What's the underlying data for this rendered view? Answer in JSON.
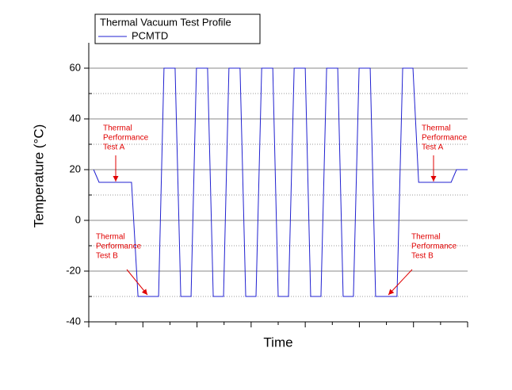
{
  "chart_data": {
    "type": "line",
    "legend_title": "Thermal Vacuum Test Profile",
    "x_label": "Time",
    "y_label": "Temperature (°C)",
    "xlim": [
      0,
      14
    ],
    "xticks": [
      0,
      2,
      4,
      6,
      8,
      10,
      12,
      14
    ],
    "x_minor_ticks": [
      1,
      3,
      5,
      7,
      9,
      11,
      13
    ],
    "ylim": [
      -40,
      70
    ],
    "yticks": [
      -40,
      -20,
      0,
      20,
      40,
      60
    ],
    "y_minor_grid": [
      -30,
      -10,
      10,
      30,
      50
    ],
    "grid": true,
    "series": [
      {
        "name": "PCMTD",
        "color": "#2020d0",
        "x": [
          0.18,
          0.38,
          1.58,
          1.82,
          2.58,
          2.78,
          3.19,
          3.4,
          3.78,
          3.98,
          4.39,
          4.6,
          4.98,
          5.18,
          5.59,
          5.8,
          6.18,
          6.39,
          6.8,
          7.0,
          7.38,
          7.59,
          8.0,
          8.2,
          8.58,
          8.79,
          9.2,
          9.4,
          9.78,
          9.99,
          10.4,
          10.6,
          11.39,
          11.6,
          11.98,
          12.19,
          13.39,
          13.59,
          14.0
        ],
        "values": [
          20,
          15,
          15,
          -30,
          -30,
          60,
          60,
          -30,
          -30,
          60,
          60,
          -30,
          -30,
          60,
          60,
          -30,
          -30,
          60,
          60,
          -30,
          -30,
          60,
          60,
          -30,
          -30,
          60,
          60,
          -30,
          -30,
          60,
          60,
          -30,
          -30,
          60,
          60,
          15,
          15,
          20,
          20
        ]
      }
    ],
    "annotations": [
      {
        "lines": [
          "Thermal",
          "Performance",
          "Test A"
        ]
      },
      {
        "lines": [
          "Thermal",
          "Performance",
          "Test B"
        ]
      },
      {
        "lines": [
          "Thermal",
          "Performance",
          "Test B"
        ]
      },
      {
        "lines": [
          "Thermal",
          "Performance",
          "Test A"
        ]
      }
    ]
  }
}
